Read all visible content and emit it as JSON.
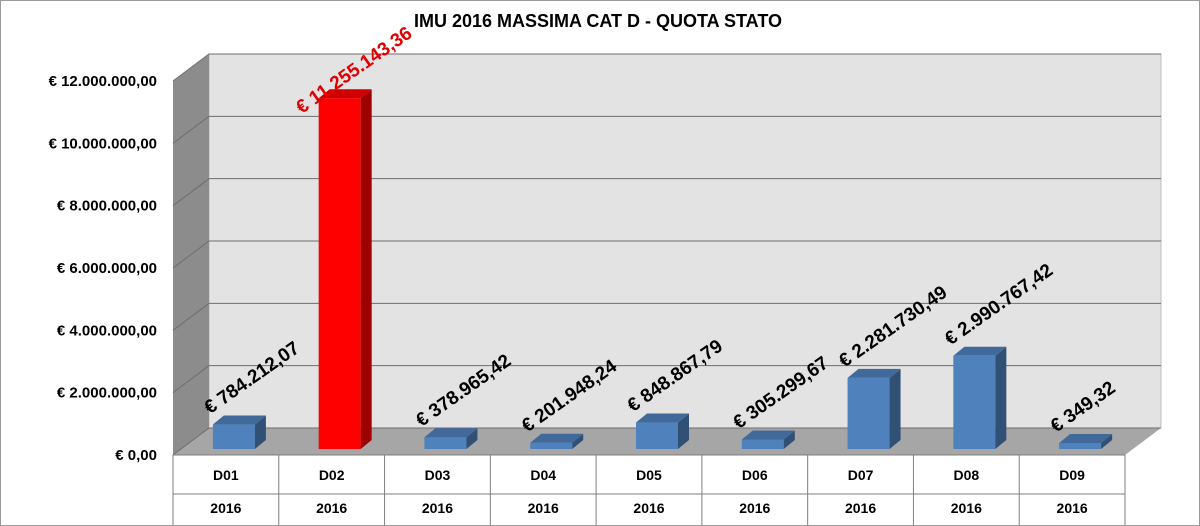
{
  "colors": {
    "bar": "#4f81bd",
    "highlight": "#ff0000",
    "highlight_label": "#e00000",
    "label": "#000000",
    "wall": "#e3e3e3",
    "floor": "#a6a6a6",
    "side_wall": "#8c8c8c"
  },
  "chart_data": {
    "type": "bar",
    "title": "IMU 2016 MASSIMA CAT D -  QUOTA STATO",
    "xlabel": "",
    "ylabel": "",
    "categories": [
      "D01",
      "D02",
      "D03",
      "D04",
      "D05",
      "D06",
      "D07",
      "D08",
      "D09"
    ],
    "category_years": [
      "2016",
      "2016",
      "2016",
      "2016",
      "2016",
      "2016",
      "2016",
      "2016",
      "2016"
    ],
    "values": [
      784212.07,
      11255143.36,
      378965.42,
      201948.24,
      848867.79,
      305299.67,
      2281730.49,
      2990767.42,
      349.32
    ],
    "value_labels": [
      "€ 784.212,07",
      "€ 11.255.143,36",
      "€ 378.965,42",
      "€ 201.948,24",
      "€ 848.867,79",
      "€ 305.299,67",
      "€ 2.281.730,49",
      "€ 2.990.767,42",
      "€ 349,32"
    ],
    "highlight_index": 1,
    "ylim": [
      0,
      12000000
    ],
    "yticks": [
      0,
      2000000,
      4000000,
      6000000,
      8000000,
      10000000,
      12000000
    ],
    "ytick_labels": [
      "€ 0,00",
      "€ 2.000.000,00",
      "€ 4.000.000,00",
      "€ 6.000.000,00",
      "€ 8.000.000,00",
      "€ 10.000.000,00",
      "€ 12.000.000,00"
    ],
    "grid": true,
    "legend": "none",
    "style": "3d-columns"
  }
}
